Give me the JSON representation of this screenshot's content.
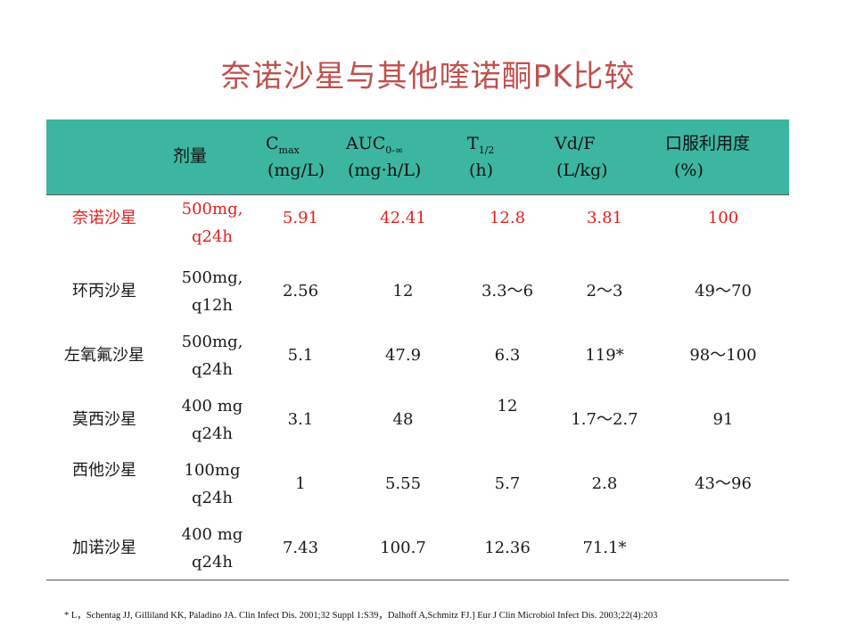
{
  "title": "奈诺沙星与其他喹诺酮PK比较",
  "header": {
    "dose": "剂量",
    "cmax": "C",
    "cmax_sub": "max",
    "cmax_unit": "(mg/L)",
    "auc": "AUC",
    "auc_sub": "0-∞",
    "auc_unit": "(mg·h/L)",
    "t12": "T",
    "t12_sub": "1/2",
    "t12_unit": "(h)",
    "vd": "Vd/F",
    "vd_unit": "(L/kg)",
    "bio": "口服利用度",
    "bio_unit": "(%)"
  },
  "rows": [
    {
      "drug": "奈诺沙星",
      "dose": "500mg,\nq24h",
      "cmax": "5.91",
      "auc": "42.41",
      "t12": "12.8",
      "vd": "3.81",
      "bio": "100"
    },
    {
      "drug": "环丙沙星",
      "dose": "500mg,\nq12h",
      "cmax": "2.56",
      "auc": "12",
      "t12": "3.3～6",
      "vd": "2～3",
      "bio": "49～70"
    },
    {
      "drug": "左氧氟沙星",
      "dose": "500mg,\nq24h",
      "cmax": "5.1",
      "auc": "47.9",
      "t12": "6.3",
      "vd": "119*",
      "bio": "98～100"
    },
    {
      "drug": "莫西沙星",
      "dose": "400 mg\nq24h",
      "cmax": "3.1",
      "auc": "48",
      "t12": "12",
      "vd": "1.7～2.7",
      "bio": "91"
    },
    {
      "drug": "西他沙星",
      "dose": "100mg\nq24h",
      "cmax": "1",
      "auc": "5.55",
      "t12": "5.7",
      "vd": "2.8",
      "bio": "43～96"
    },
    {
      "drug": "加诺沙星",
      "dose": "400 mg\nq24h",
      "cmax": "7.43",
      "auc": "100.7",
      "t12": "12.36",
      "vd": "71.1*",
      "bio": ""
    }
  ],
  "footnote": "* L，Schentag JJ, Gilliland KK, Paladino JA. Clin Infect Dis. 2001;32 Suppl 1:S39，Dalhoff A,Schmitz FJ.] Eur J Clin Microbiol Infect Dis. 2003;22(4):203",
  "colors": {
    "title": "#c0504d",
    "header_bg": "#3cb6a0",
    "highlight": "#e02020"
  }
}
